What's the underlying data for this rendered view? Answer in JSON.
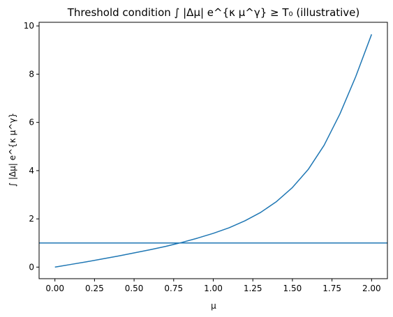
{
  "chart_data": {
    "type": "line",
    "title": "Threshold condition ∫ |Δμ| e^{κ μ^γ} ≥ T₀ (illustrative)",
    "xlabel": "μ",
    "ylabel": "∫ |Δμ| e^{κ μ^γ}",
    "xlim": [
      -0.1,
      2.1
    ],
    "ylim": [
      -0.48,
      10.15
    ],
    "xticks": [
      0.0,
      0.25,
      0.5,
      0.75,
      1.0,
      1.25,
      1.5,
      1.75,
      2.0
    ],
    "xtick_labels": [
      "0.00",
      "0.25",
      "0.50",
      "0.75",
      "1.00",
      "1.25",
      "1.50",
      "1.75",
      "2.00"
    ],
    "yticks": [
      0,
      2,
      4,
      6,
      8,
      10
    ],
    "ytick_labels": [
      "0",
      "2",
      "4",
      "6",
      "8",
      "10"
    ],
    "grid": false,
    "series": [
      {
        "color": "#1f77b4",
        "x": [
          0.0,
          0.1,
          0.2,
          0.3,
          0.4,
          0.5,
          0.6,
          0.7,
          0.8,
          0.9,
          1.0,
          1.1,
          1.2,
          1.3,
          1.4,
          1.5,
          1.6,
          1.7,
          1.8,
          1.9,
          2.0
        ],
        "y": [
          0.0,
          0.11,
          0.22,
          0.34,
          0.46,
          0.59,
          0.72,
          0.86,
          1.02,
          1.2,
          1.4,
          1.63,
          1.92,
          2.27,
          2.72,
          3.3,
          4.05,
          5.05,
          6.35,
          7.9,
          9.65
        ]
      }
    ],
    "hlines": [
      {
        "y": 1.0,
        "color": "#1f77b4"
      }
    ]
  }
}
